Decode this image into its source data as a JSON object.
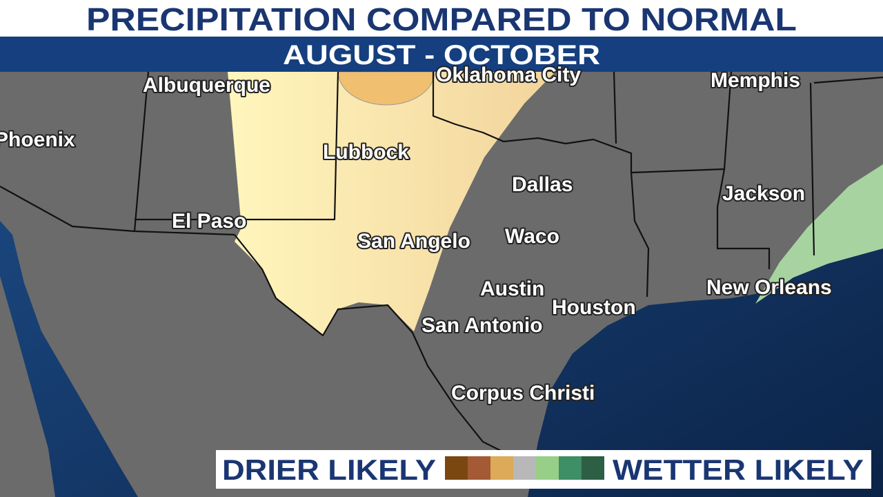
{
  "header": {
    "title": "PRECIPITATION COMPARED TO NORMAL",
    "subtitle": "AUGUST - OCTOBER"
  },
  "cities": [
    {
      "label": "Albuquerque"
    },
    {
      "label": "Oklahoma City"
    },
    {
      "label": "Memphis"
    },
    {
      "label": "Phoenix"
    },
    {
      "label": "Lubbock"
    },
    {
      "label": "Dallas"
    },
    {
      "label": "Jackson"
    },
    {
      "label": "El Paso"
    },
    {
      "label": "San Angelo"
    },
    {
      "label": "Waco"
    },
    {
      "label": "Austin"
    },
    {
      "label": "Houston"
    },
    {
      "label": "New Orleans"
    },
    {
      "label": "San Antonio"
    },
    {
      "label": "Corpus Christi"
    }
  ],
  "legend": {
    "left": "DRIER LIKELY",
    "right": "WETTER LIKELY"
  }
}
